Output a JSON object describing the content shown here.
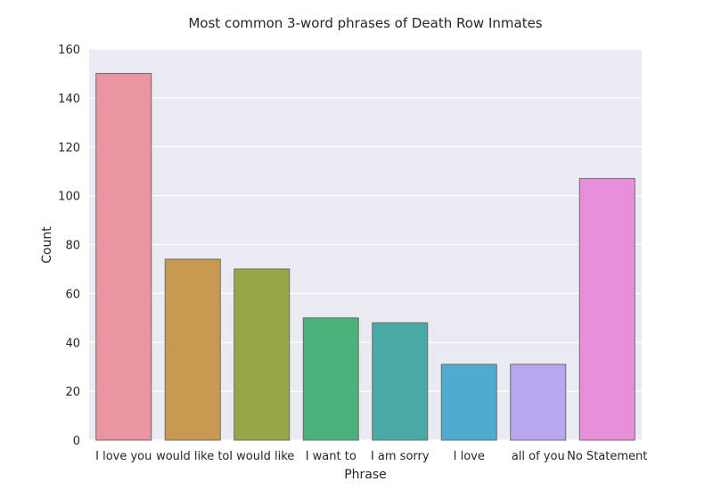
{
  "chart_data": {
    "type": "bar",
    "title": "Most common 3-word phrases of Death Row Inmates",
    "xlabel": "Phrase",
    "ylabel": "Count",
    "categories": [
      "I love you",
      "would like to",
      "I would like",
      "I want to",
      "I am sorry",
      "I love",
      "all of you",
      "No Statement"
    ],
    "values": [
      150,
      74,
      70,
      50,
      48,
      31,
      31,
      107
    ],
    "ylim": [
      0,
      160
    ],
    "yticks": [
      0,
      20,
      40,
      60,
      80,
      100,
      120,
      140,
      160
    ],
    "grid": true,
    "legend": "none",
    "colors": [
      "#ea96a2",
      "#c89951",
      "#97a647",
      "#4bb17c",
      "#4aaba6",
      "#4fabd0",
      "#b8a7ee",
      "#e88fdb"
    ],
    "background": "#eaeaf2"
  }
}
